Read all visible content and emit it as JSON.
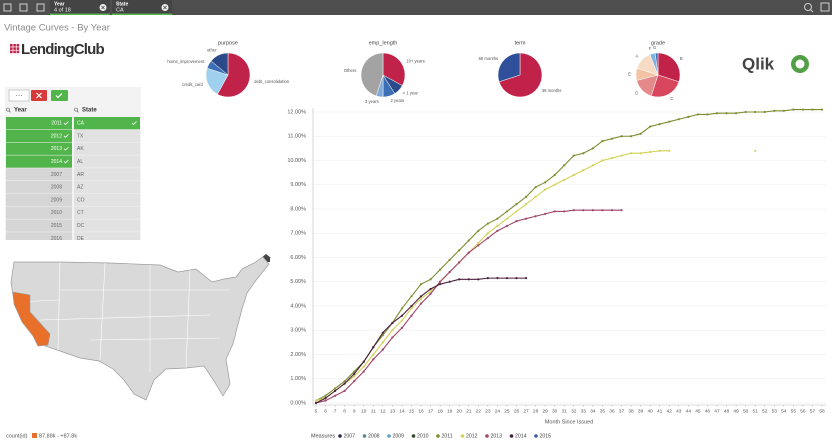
{
  "toolbar": {
    "selections": [
      {
        "field": "Year",
        "value": "4 of 18"
      },
      {
        "field": "State",
        "value": "CA"
      }
    ]
  },
  "sheet_title": "Vintage Curves - By Year",
  "logos": {
    "left": "LendingClub",
    "right": "Qlik"
  },
  "filters": {
    "more_button": "···",
    "lists": [
      {
        "title": "Year",
        "items": [
          {
            "label": "2011",
            "selected": true
          },
          {
            "label": "2012",
            "selected": true
          },
          {
            "label": "2013",
            "selected": true
          },
          {
            "label": "2014",
            "selected": true
          },
          {
            "label": "2007",
            "selected": false
          },
          {
            "label": "2008",
            "selected": false
          },
          {
            "label": "2009",
            "selected": false
          },
          {
            "label": "2010",
            "selected": false
          },
          {
            "label": "2015",
            "selected": false
          },
          {
            "label": "2016",
            "selected": false
          }
        ]
      },
      {
        "title": "State",
        "items": [
          {
            "label": "CA",
            "selected": true
          },
          {
            "label": "TX",
            "selected": false
          },
          {
            "label": "AK",
            "selected": false
          },
          {
            "label": "AL",
            "selected": false
          },
          {
            "label": "AR",
            "selected": false
          },
          {
            "label": "AZ",
            "selected": false
          },
          {
            "label": "CO",
            "selected": false
          },
          {
            "label": "CT",
            "selected": false
          },
          {
            "label": "DC",
            "selected": false
          },
          {
            "label": "DE",
            "selected": false
          }
        ]
      }
    ]
  },
  "pies": [
    {
      "title": "purpose",
      "slices": [
        {
          "label": "debt_consolidation",
          "value": 58,
          "color": "#c0224a"
        },
        {
          "label": "credit_card",
          "value": 22,
          "color": "#9fd0ee"
        },
        {
          "label": "home_improvement",
          "value": 6,
          "color": "#3d6fb6"
        },
        {
          "label": "other",
          "value": 14,
          "color": "#2a4a8a"
        }
      ]
    },
    {
      "title": "emp_length",
      "slices": [
        {
          "label": "10+ years",
          "value": 33,
          "color": "#c0224a"
        },
        {
          "label": "< 1 year",
          "value": 8,
          "color": "#2a4a8a"
        },
        {
          "label": "2 years",
          "value": 9,
          "color": "#3d6fb6"
        },
        {
          "label": "3 years",
          "value": 5,
          "color": "#7fa8d8"
        },
        {
          "label": "Others",
          "value": 45,
          "color": "#a3a3a3"
        }
      ]
    },
    {
      "title": "term",
      "slices": [
        {
          "label": "36 months",
          "value": 70,
          "color": "#c0224a"
        },
        {
          "label": "60 months",
          "value": 30,
          "color": "#2f4f9a"
        }
      ]
    },
    {
      "title": "grade",
      "slices": [
        {
          "label": "B",
          "value": 30,
          "color": "#c0224a"
        },
        {
          "label": "C",
          "value": 25,
          "color": "#d9475e"
        },
        {
          "label": "D",
          "value": 16,
          "color": "#e58a8a"
        },
        {
          "label": "E",
          "value": 9,
          "color": "#f2c4a4"
        },
        {
          "label": "A",
          "value": 14,
          "color": "#f6dcc4"
        },
        {
          "label": "F",
          "value": 4,
          "color": "#7fb2dc"
        },
        {
          "label": "G",
          "value": 2,
          "color": "#3d6fb6"
        }
      ]
    }
  ],
  "map": {
    "legend_title": "count(id)",
    "legend_range": "87.88k - +87.8k",
    "highlight_color": "#e8702a"
  },
  "chart_data": {
    "type": "line",
    "x_label": "Month Since Issued",
    "legend_title": "Measures",
    "x": [
      5,
      6,
      7,
      8,
      9,
      10,
      11,
      12,
      13,
      14,
      15,
      16,
      17,
      18,
      19,
      20,
      21,
      22,
      23,
      24,
      25,
      26,
      27,
      28,
      29,
      30,
      31,
      32,
      33,
      34,
      35,
      36,
      37,
      38,
      39,
      40,
      41,
      42,
      43,
      44,
      45,
      46,
      47,
      48,
      49,
      50,
      51,
      52,
      53,
      54,
      55,
      56,
      57,
      58
    ],
    "xlim": [
      5,
      58
    ],
    "xticks": [
      5,
      6,
      7,
      8,
      9,
      10,
      11,
      12,
      13,
      14,
      15,
      16,
      17,
      18,
      19,
      20,
      21,
      22,
      23,
      24,
      25,
      26,
      27,
      28,
      29,
      30,
      31,
      32,
      33,
      34,
      35,
      36,
      37,
      38,
      39,
      40,
      41,
      42,
      43,
      44,
      45,
      46,
      47,
      48,
      49,
      50,
      51,
      52,
      53,
      54,
      55,
      56,
      57,
      58
    ],
    "ylim": [
      0,
      12.5
    ],
    "yticks": [
      {
        "value": 0,
        "label": "0.00%"
      },
      {
        "value": 1,
        "label": "1.00%"
      },
      {
        "value": 2,
        "label": "2.00%"
      },
      {
        "value": 3,
        "label": "3.00%"
      },
      {
        "value": 4,
        "label": "4.00%"
      },
      {
        "value": 5,
        "label": "5.00%"
      },
      {
        "value": 6,
        "label": "6.00%"
      },
      {
        "value": 7,
        "label": "7.00%"
      },
      {
        "value": 8,
        "label": "8.00%"
      },
      {
        "value": 9,
        "label": "9.00%"
      },
      {
        "value": 10,
        "label": "10.00%"
      },
      {
        "value": 11,
        "label": "11.00%"
      },
      {
        "value": 12,
        "label": "12.00%"
      }
    ],
    "grid": true,
    "series": [
      {
        "name": "2007",
        "color": "#2b2b4b",
        "values": [
          null,
          null,
          null,
          null,
          null,
          null,
          null,
          null,
          null,
          null,
          null,
          null,
          null,
          null,
          null,
          null,
          null,
          null,
          null,
          null,
          null,
          null,
          null,
          null,
          null,
          null,
          null,
          null,
          null,
          null,
          null,
          null,
          null,
          null,
          null,
          null,
          null,
          null,
          null,
          null,
          null,
          null,
          null,
          null,
          null,
          null,
          null,
          null,
          null,
          null,
          null,
          null,
          null,
          null
        ]
      },
      {
        "name": "2008",
        "color": "#4a8c8c",
        "values": [
          null,
          null,
          null,
          null,
          null,
          null,
          null,
          null,
          null,
          null,
          null,
          null,
          null,
          null,
          null,
          null,
          null,
          null,
          null,
          null,
          null,
          null,
          null,
          null,
          null,
          null,
          null,
          null,
          null,
          null,
          null,
          null,
          null,
          null,
          null,
          null,
          null,
          null,
          null,
          null,
          null,
          null,
          null,
          null,
          null,
          null,
          null,
          null,
          null,
          null,
          null,
          null,
          null,
          null
        ]
      },
      {
        "name": "2009",
        "color": "#5aa0c8",
        "values": [
          null,
          null,
          null,
          null,
          null,
          null,
          null,
          null,
          null,
          null,
          null,
          null,
          null,
          null,
          null,
          null,
          null,
          null,
          null,
          null,
          null,
          null,
          null,
          null,
          null,
          null,
          null,
          null,
          null,
          null,
          null,
          null,
          null,
          null,
          null,
          null,
          null,
          null,
          null,
          null,
          null,
          null,
          null,
          null,
          null,
          null,
          null,
          null,
          null,
          null,
          null,
          null,
          null,
          null
        ]
      },
      {
        "name": "2010",
        "color": "#2d4a2d",
        "values": [
          null,
          null,
          null,
          null,
          null,
          null,
          null,
          null,
          null,
          null,
          null,
          null,
          null,
          null,
          null,
          null,
          null,
          null,
          null,
          null,
          null,
          null,
          null,
          null,
          null,
          null,
          null,
          null,
          null,
          null,
          null,
          null,
          null,
          null,
          null,
          null,
          null,
          null,
          null,
          null,
          null,
          null,
          null,
          null,
          null,
          null,
          null,
          null,
          null,
          null,
          null,
          null,
          null,
          null
        ]
      },
      {
        "name": "2011",
        "color": "#7d8c2e",
        "values": [
          0.1,
          0.3,
          0.6,
          0.9,
          1.3,
          1.7,
          2.3,
          2.8,
          3.3,
          3.9,
          4.4,
          4.9,
          5.1,
          5.5,
          5.9,
          6.3,
          6.7,
          7.1,
          7.4,
          7.6,
          7.9,
          8.2,
          8.5,
          8.9,
          9.1,
          9.4,
          9.8,
          10.2,
          10.3,
          10.5,
          10.8,
          10.9,
          11.0,
          11.0,
          11.1,
          11.4,
          11.5,
          11.6,
          11.7,
          11.8,
          11.9,
          11.9,
          11.95,
          11.95,
          11.95,
          12.0,
          12.0,
          12.0,
          12.05,
          12.05,
          12.1,
          12.1,
          12.1,
          12.1
        ]
      },
      {
        "name": "2012",
        "color": "#d2d256",
        "values": [
          0.1,
          0.2,
          0.5,
          0.8,
          1.1,
          1.5,
          2.0,
          2.5,
          3.0,
          3.4,
          3.9,
          4.3,
          4.6,
          5.0,
          5.4,
          5.8,
          6.2,
          6.6,
          7.0,
          7.3,
          7.6,
          7.9,
          8.2,
          8.5,
          8.8,
          9.0,
          9.2,
          9.4,
          9.6,
          9.8,
          10.0,
          10.1,
          10.2,
          10.3,
          10.3,
          10.35,
          10.4,
          10.4,
          null,
          null,
          null,
          null,
          null,
          null,
          null,
          null,
          10.4,
          null,
          null,
          null,
          null,
          null,
          null,
          null
        ]
      },
      {
        "name": "2013",
        "color": "#a0446a",
        "values": [
          0.0,
          0.1,
          0.3,
          0.5,
          0.9,
          1.3,
          1.8,
          2.2,
          2.7,
          3.1,
          3.6,
          4.1,
          4.5,
          5.0,
          5.4,
          5.8,
          6.2,
          6.5,
          6.8,
          7.1,
          7.3,
          7.5,
          7.6,
          7.7,
          7.8,
          7.9,
          7.9,
          7.95,
          7.95,
          7.95,
          7.95,
          7.95,
          7.95,
          null,
          null,
          null,
          null,
          null,
          null,
          null,
          null,
          null,
          null,
          null,
          null,
          null,
          null,
          null,
          null,
          null,
          null,
          null,
          null,
          null
        ]
      },
      {
        "name": "2014",
        "color": "#4a1f3f",
        "values": [
          0.0,
          0.2,
          0.5,
          0.8,
          1.2,
          1.7,
          2.3,
          2.9,
          3.3,
          3.6,
          4.0,
          4.4,
          4.7,
          4.9,
          5.0,
          5.1,
          5.1,
          5.1,
          5.15,
          5.15,
          5.15,
          5.15,
          5.15,
          null,
          null,
          null,
          null,
          null,
          null,
          null,
          null,
          null,
          null,
          null,
          null,
          null,
          null,
          null,
          null,
          null,
          null,
          null,
          null,
          null,
          null,
          null,
          null,
          null,
          null,
          null,
          null,
          null,
          null,
          null
        ]
      },
      {
        "name": "2015",
        "color": "#3a5aa0",
        "values": [
          null,
          null,
          null,
          null,
          null,
          null,
          null,
          null,
          null,
          null,
          null,
          null,
          null,
          null,
          null,
          null,
          null,
          null,
          null,
          null,
          null,
          null,
          null,
          null,
          null,
          null,
          null,
          null,
          null,
          null,
          null,
          null,
          null,
          null,
          null,
          null,
          null,
          null,
          null,
          null,
          null,
          null,
          null,
          null,
          null,
          null,
          null,
          null,
          null,
          null,
          null,
          null,
          null,
          null
        ]
      }
    ]
  }
}
